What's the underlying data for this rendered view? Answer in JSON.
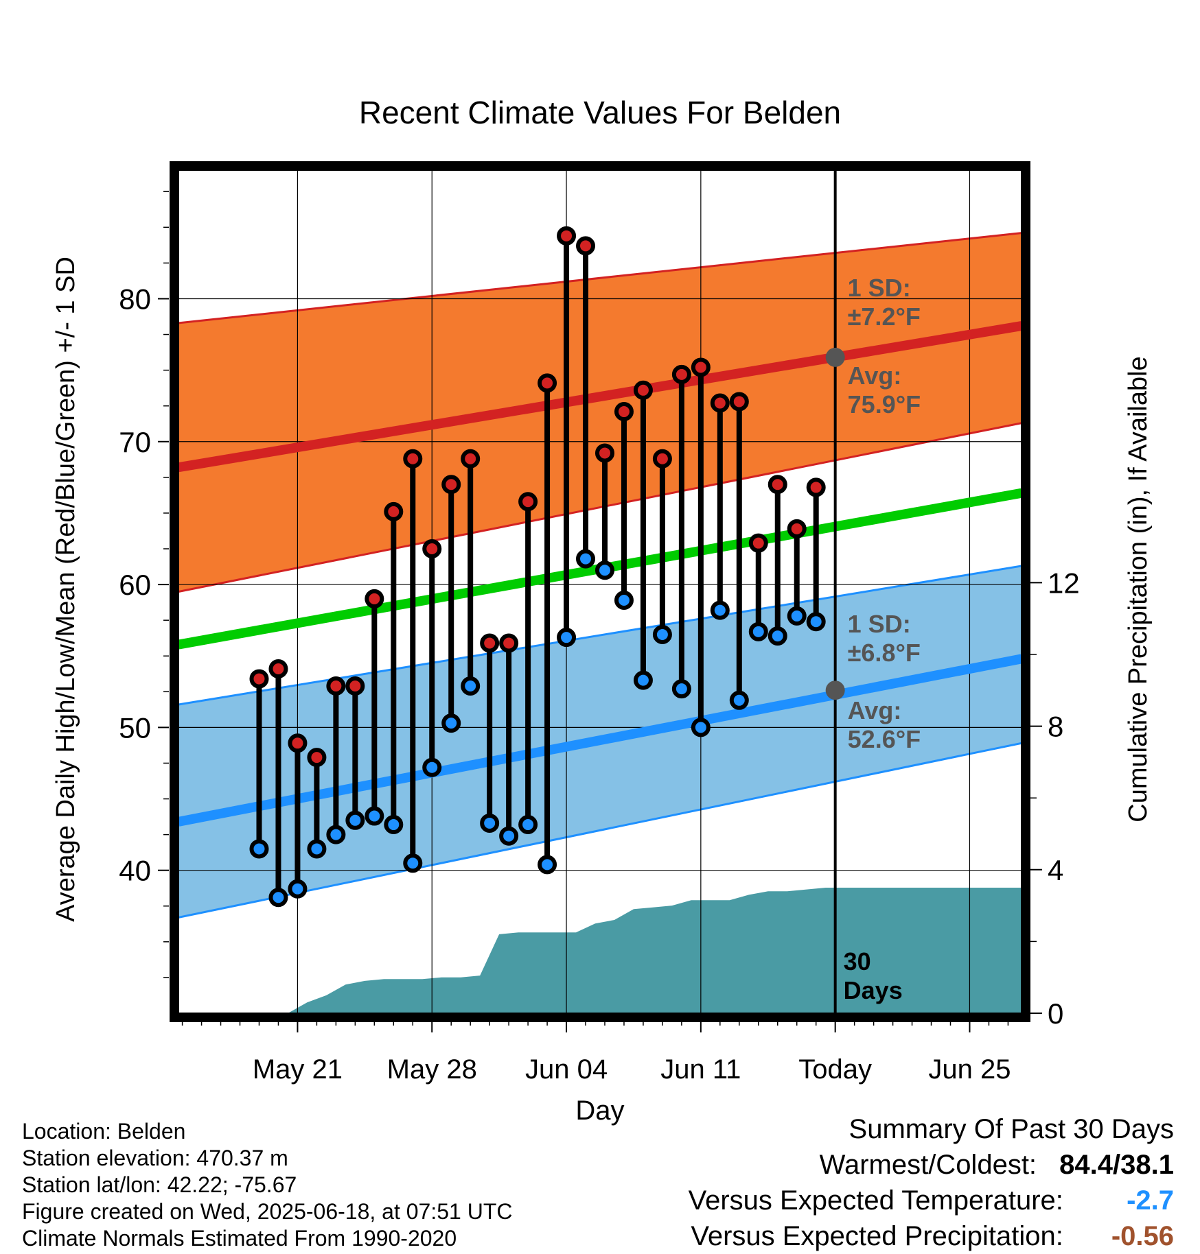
{
  "chart_data": {
    "type": "line",
    "title": "Recent Climate Values For Belden",
    "xlabel": "Day",
    "ylabel_left": "Average Daily High/Low/Mean (Red/Blue/Green) +/- 1 SD",
    "ylabel_right": "Cumulative Precipitation (in), If Available",
    "x_tick_labels": [
      "May 21",
      "May 28",
      "Jun 04",
      "Jun 11",
      "Today",
      "Jun 25"
    ],
    "y_left_ticks": [
      40,
      50,
      60,
      70,
      80
    ],
    "y_left_range": [
      30,
      89
    ],
    "y_right_ticks": [
      0,
      4,
      8,
      12
    ],
    "y_right_range": [
      0,
      23.5
    ],
    "x_range_days": [
      -34.2,
      9.7
    ],
    "grid": true,
    "today_annotation": "30 Days",
    "normals": {
      "day_offset": [
        -34.2,
        9.7
      ],
      "high_avg": [
        68.2,
        78.1
      ],
      "high_upper": [
        78.3,
        84.6
      ],
      "high_lower": [
        59.5,
        71.3
      ],
      "low_avg": [
        43.4,
        54.8
      ],
      "low_upper": [
        51.6,
        61.3
      ],
      "low_lower": [
        36.7,
        48.9
      ],
      "mean_avg": [
        55.8,
        66.4
      ]
    },
    "high_annotation": {
      "sd_label": "1 SD:",
      "sd_value": "±7.2°F",
      "avg_label": "Avg:",
      "avg_value": "75.9°F",
      "today_value": 75.9
    },
    "low_annotation": {
      "sd_label": "1 SD:",
      "sd_value": "±6.8°F",
      "avg_label": "Avg:",
      "avg_value": "52.6°F",
      "today_value": 52.6
    },
    "daily": {
      "day_offset": [
        -30,
        -29,
        -28,
        -27,
        -26,
        -25,
        -24,
        -23,
        -22,
        -21,
        -20,
        -19,
        -18,
        -17,
        -16,
        -15,
        -14,
        -13,
        -12,
        -11,
        -10,
        -9,
        -8,
        -7,
        -6,
        -5,
        -4,
        -3,
        -2,
        -1
      ],
      "high": [
        53.4,
        54.1,
        48.9,
        47.9,
        52.9,
        52.9,
        59.0,
        65.1,
        68.8,
        62.5,
        67.0,
        68.8,
        55.9,
        55.9,
        65.8,
        74.1,
        84.4,
        83.7,
        69.2,
        72.1,
        73.6,
        68.8,
        74.7,
        75.2,
        72.7,
        72.8,
        62.9,
        67.0,
        63.9,
        66.8
      ],
      "low": [
        41.5,
        38.1,
        38.7,
        41.5,
        42.5,
        43.5,
        43.8,
        43.2,
        40.5,
        47.2,
        50.3,
        52.9,
        43.3,
        42.4,
        43.2,
        40.4,
        56.3,
        61.8,
        61.0,
        58.9,
        53.3,
        56.5,
        52.7,
        50.0,
        58.2,
        51.9,
        56.7,
        56.4,
        57.8,
        57.4
      ]
    },
    "precipitation": {
      "day_offset": [
        -34.2,
        -28.5,
        -27.5,
        -26.5,
        -25.5,
        -24.5,
        -23.5,
        -22.5,
        -21.5,
        -20.5,
        -19.5,
        -18.5,
        -17.5,
        -16.5,
        -15.5,
        -14.5,
        -13.5,
        -12.5,
        -11.5,
        -10.5,
        -9.5,
        -8.5,
        -7.5,
        -6.5,
        -5.5,
        -4.5,
        -3.5,
        -2.5,
        -1.5,
        -0.5,
        9.7
      ],
      "cumulative": [
        0,
        0,
        0.3,
        0.5,
        0.8,
        0.9,
        0.95,
        0.95,
        0.95,
        1.0,
        1.0,
        1.05,
        2.2,
        2.25,
        2.25,
        2.25,
        2.25,
        2.5,
        2.6,
        2.9,
        2.95,
        3.0,
        3.15,
        3.15,
        3.15,
        3.3,
        3.4,
        3.4,
        3.45,
        3.5,
        3.5
      ]
    }
  },
  "footer": {
    "location": "Location: Belden",
    "elevation": "Station elevation: 470.37 m",
    "latlon": "Station lat/lon: 42.22; -75.67",
    "created": "Figure created on Wed, 2025-06-18, at 07:51 UTC",
    "normals": "Climate Normals Estimated From 1990-2020"
  },
  "summary": {
    "title": "Summary Of Past 30 Days",
    "warm_cold_label": "Warmest/Coldest:",
    "warm_cold_value": "84.4/38.1",
    "temp_label": "Versus Expected Temperature:",
    "temp_value": "-2.7",
    "precip_label": "Versus Expected Precipitation:",
    "precip_value": "-0.56"
  },
  "colors": {
    "high_band": "#f47a2e",
    "high_line": "#d32222",
    "low_band": "#85c1e6",
    "low_line": "#1e90ff",
    "mean_line": "#00cc00",
    "precip": "#4a9ba4",
    "annotation": "#555555",
    "temp_anomaly": "#1e90ff",
    "precip_anomaly": "#a0522d"
  }
}
